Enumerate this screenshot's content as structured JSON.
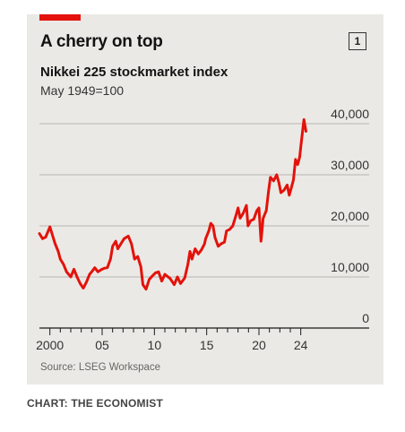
{
  "header": {
    "title": "A cherry on top",
    "badge": "1",
    "subtitle": "Nikkei 225 stockmarket index",
    "subtitle2": "May 1949=100"
  },
  "footer": {
    "source": "Source: LSEG Workspace",
    "credit": "CHART: THE ECONOMIST"
  },
  "colors": {
    "line": "#e3120b",
    "tag": "#e3120b"
  },
  "chart_data": {
    "type": "line",
    "title": "A cherry on top",
    "subtitle": "Nikkei 225 stockmarket index",
    "ylabel": "May 1949=100",
    "xlim": [
      1999,
      2024.8
    ],
    "ylim": [
      0,
      40000
    ],
    "grid": true,
    "y_ticks": [
      0,
      10000,
      20000,
      30000,
      40000
    ],
    "y_tick_labels": [
      "0",
      "10,000",
      "20,000",
      "30,000",
      "40,000"
    ],
    "x_ticks": [
      2000,
      2005,
      2010,
      2015,
      2020,
      2024
    ],
    "x_tick_labels": [
      "2000",
      "05",
      "10",
      "15",
      "20",
      "24"
    ],
    "series": [
      {
        "values": [
          [
            1999.0,
            18500
          ],
          [
            1999.3,
            17500
          ],
          [
            1999.6,
            17800
          ],
          [
            2000.0,
            19800
          ],
          [
            2000.2,
            18500
          ],
          [
            2000.5,
            16500
          ],
          [
            2000.8,
            15000
          ],
          [
            2001.0,
            13500
          ],
          [
            2001.3,
            12500
          ],
          [
            2001.6,
            11000
          ],
          [
            2001.8,
            10500
          ],
          [
            2002.0,
            10000
          ],
          [
            2002.3,
            11500
          ],
          [
            2002.6,
            10000
          ],
          [
            2002.9,
            8700
          ],
          [
            2003.2,
            7800
          ],
          [
            2003.5,
            9000
          ],
          [
            2003.8,
            10500
          ],
          [
            2004.0,
            11000
          ],
          [
            2004.3,
            11800
          ],
          [
            2004.6,
            11000
          ],
          [
            2004.9,
            11400
          ],
          [
            2005.2,
            11700
          ],
          [
            2005.5,
            11800
          ],
          [
            2005.8,
            13500
          ],
          [
            2006.0,
            16000
          ],
          [
            2006.3,
            17000
          ],
          [
            2006.5,
            15500
          ],
          [
            2006.8,
            16500
          ],
          [
            2007.1,
            17500
          ],
          [
            2007.5,
            18000
          ],
          [
            2007.8,
            16500
          ],
          [
            2008.1,
            13500
          ],
          [
            2008.4,
            14000
          ],
          [
            2008.7,
            12000
          ],
          [
            2008.9,
            8500
          ],
          [
            2009.2,
            7600
          ],
          [
            2009.5,
            9500
          ],
          [
            2009.8,
            10200
          ],
          [
            2010.1,
            10800
          ],
          [
            2010.4,
            11000
          ],
          [
            2010.7,
            9200
          ],
          [
            2011.0,
            10500
          ],
          [
            2011.2,
            10200
          ],
          [
            2011.5,
            9700
          ],
          [
            2011.9,
            8500
          ],
          [
            2012.2,
            10000
          ],
          [
            2012.5,
            8700
          ],
          [
            2012.9,
            9800
          ],
          [
            2013.2,
            12500
          ],
          [
            2013.4,
            15000
          ],
          [
            2013.6,
            13500
          ],
          [
            2013.9,
            15500
          ],
          [
            2014.2,
            14500
          ],
          [
            2014.5,
            15300
          ],
          [
            2014.8,
            16500
          ],
          [
            2014.9,
            17500
          ],
          [
            2015.2,
            19000
          ],
          [
            2015.4,
            20500
          ],
          [
            2015.6,
            20000
          ],
          [
            2015.8,
            17700
          ],
          [
            2016.1,
            16000
          ],
          [
            2016.4,
            16500
          ],
          [
            2016.7,
            16800
          ],
          [
            2016.9,
            19000
          ],
          [
            2017.2,
            19300
          ],
          [
            2017.5,
            20000
          ],
          [
            2017.8,
            22000
          ],
          [
            2018.0,
            23500
          ],
          [
            2018.2,
            21500
          ],
          [
            2018.5,
            22500
          ],
          [
            2018.8,
            24000
          ],
          [
            2018.95,
            20000
          ],
          [
            2019.2,
            21000
          ],
          [
            2019.5,
            21300
          ],
          [
            2019.8,
            23000
          ],
          [
            2020.0,
            23500
          ],
          [
            2020.2,
            17000
          ],
          [
            2020.4,
            21500
          ],
          [
            2020.7,
            23000
          ],
          [
            2020.9,
            26500
          ],
          [
            2021.1,
            29500
          ],
          [
            2021.4,
            28800
          ],
          [
            2021.7,
            30000
          ],
          [
            2021.9,
            28500
          ],
          [
            2022.1,
            26500
          ],
          [
            2022.4,
            27000
          ],
          [
            2022.7,
            28000
          ],
          [
            2022.9,
            26000
          ],
          [
            2023.1,
            27500
          ],
          [
            2023.3,
            29000
          ],
          [
            2023.5,
            33000
          ],
          [
            2023.7,
            32000
          ],
          [
            2023.9,
            33500
          ],
          [
            2024.0,
            35500
          ],
          [
            2024.2,
            39000
          ],
          [
            2024.3,
            40800
          ],
          [
            2024.5,
            38500
          ]
        ]
      }
    ]
  }
}
